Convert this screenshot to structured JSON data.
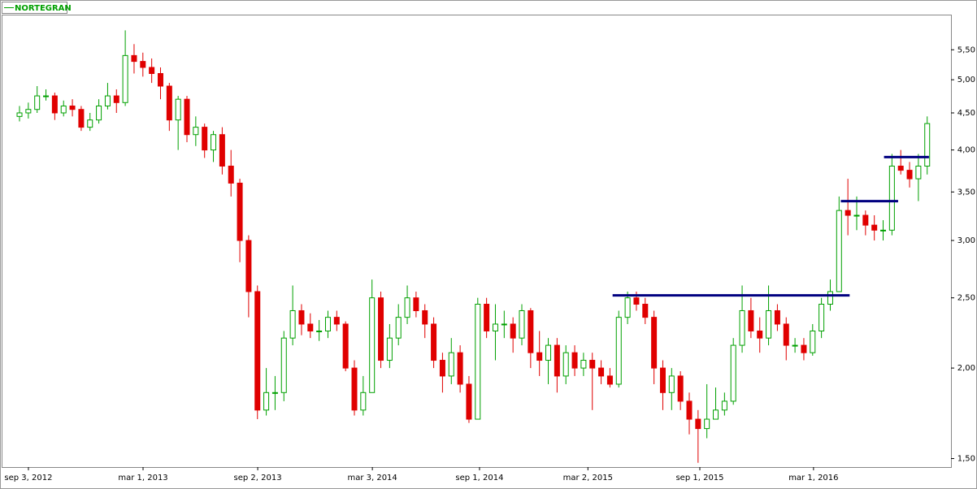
{
  "chart_data": {
    "type": "candlestick",
    "log_scale": true,
    "series": [
      {
        "name": "NORTEGRAN",
        "color": "#00a000",
        "up_color": "#00a000",
        "down_color": "#e00000",
        "open": [
          4.45,
          4.5,
          4.55,
          4.75,
          4.75,
          4.5,
          4.6,
          4.55,
          4.3,
          4.4,
          4.6,
          4.75,
          4.65,
          5.4,
          5.3,
          5.2,
          5.1,
          4.9,
          4.4,
          4.7,
          4.2,
          4.3,
          4.0,
          4.2,
          3.8,
          3.6,
          3.0,
          2.55,
          1.75,
          1.85,
          1.85,
          2.2,
          2.4,
          2.3,
          2.25,
          2.25,
          2.35,
          2.3,
          2.0,
          1.75,
          1.85,
          2.5,
          2.05,
          2.2,
          2.35,
          2.5,
          2.4,
          2.3,
          2.05,
          1.95,
          2.1,
          1.9,
          1.7,
          2.45,
          2.25,
          2.3,
          2.3,
          2.2,
          2.4,
          2.1,
          2.05,
          2.15,
          1.95,
          2.1,
          2.0,
          2.05,
          2.0,
          1.95,
          1.9,
          2.35,
          2.5,
          2.45,
          2.35,
          2.0,
          1.85,
          1.95,
          1.8,
          1.7,
          1.65,
          1.7,
          1.75,
          1.8,
          2.15,
          2.4,
          2.25,
          2.2,
          2.4,
          2.3,
          2.15,
          2.15,
          2.1,
          2.25,
          2.45,
          2.55,
          3.3,
          3.25,
          3.25,
          3.15,
          3.1,
          3.1,
          3.8,
          3.75,
          3.65,
          3.8
        ],
        "high": [
          4.6,
          4.65,
          4.9,
          4.85,
          4.8,
          4.68,
          4.7,
          4.6,
          4.5,
          4.7,
          4.95,
          4.85,
          5.85,
          5.6,
          5.45,
          5.35,
          5.2,
          4.95,
          4.75,
          4.75,
          4.45,
          4.35,
          4.25,
          4.3,
          4.0,
          3.65,
          3.05,
          2.6,
          2.0,
          1.95,
          2.25,
          2.6,
          2.45,
          2.38,
          2.33,
          2.4,
          2.4,
          2.32,
          2.05,
          1.95,
          2.65,
          2.55,
          2.3,
          2.45,
          2.6,
          2.55,
          2.45,
          2.35,
          2.1,
          2.2,
          2.15,
          1.95,
          2.5,
          2.5,
          2.45,
          2.4,
          2.35,
          2.45,
          2.42,
          2.25,
          2.2,
          2.2,
          2.15,
          2.15,
          2.1,
          2.1,
          2.05,
          2.0,
          2.4,
          2.55,
          2.55,
          2.5,
          2.4,
          2.05,
          2.0,
          1.98,
          1.85,
          1.75,
          1.9,
          1.88,
          1.85,
          2.2,
          2.6,
          2.5,
          2.35,
          2.6,
          2.45,
          2.35,
          2.2,
          2.2,
          2.3,
          2.5,
          2.65,
          3.45,
          3.65,
          3.45,
          3.3,
          3.25,
          3.2,
          3.95,
          4.0,
          3.85,
          3.95,
          4.45
        ],
        "low": [
          4.38,
          4.42,
          4.5,
          4.68,
          4.4,
          4.45,
          4.45,
          4.25,
          4.25,
          4.35,
          4.55,
          4.5,
          4.6,
          5.1,
          5.05,
          4.95,
          4.7,
          4.25,
          4.0,
          4.1,
          4.05,
          3.9,
          3.85,
          3.7,
          3.45,
          2.8,
          2.35,
          1.7,
          1.72,
          1.75,
          1.8,
          2.15,
          2.22,
          2.2,
          2.18,
          2.2,
          2.25,
          1.98,
          1.72,
          1.72,
          1.85,
          2.0,
          2.0,
          2.15,
          2.3,
          2.35,
          2.2,
          2.0,
          1.85,
          1.9,
          1.85,
          1.68,
          1.7,
          2.2,
          2.05,
          2.2,
          2.1,
          2.15,
          2.0,
          1.95,
          1.9,
          1.85,
          1.9,
          1.95,
          1.95,
          1.75,
          1.9,
          1.88,
          1.88,
          2.3,
          2.4,
          2.3,
          1.9,
          1.75,
          1.75,
          1.75,
          1.62,
          1.48,
          1.6,
          1.7,
          1.72,
          1.78,
          2.1,
          2.2,
          2.1,
          2.15,
          2.25,
          2.05,
          2.1,
          2.05,
          2.08,
          2.2,
          2.4,
          2.55,
          3.05,
          3.1,
          3.05,
          3.0,
          3.0,
          3.05,
          3.7,
          3.55,
          3.4,
          3.7
        ],
        "close": [
          4.5,
          4.55,
          4.75,
          4.75,
          4.5,
          4.6,
          4.55,
          4.3,
          4.4,
          4.6,
          4.75,
          4.65,
          5.4,
          5.3,
          5.2,
          5.1,
          4.9,
          4.4,
          4.7,
          4.2,
          4.3,
          4.0,
          4.2,
          3.8,
          3.6,
          3.0,
          2.55,
          1.75,
          1.85,
          1.85,
          2.2,
          2.4,
          2.3,
          2.25,
          2.25,
          2.35,
          2.3,
          2.0,
          1.75,
          1.85,
          2.5,
          2.05,
          2.2,
          2.35,
          2.5,
          2.4,
          2.3,
          2.05,
          1.95,
          2.1,
          1.9,
          1.7,
          2.45,
          2.25,
          2.3,
          2.3,
          2.2,
          2.4,
          2.1,
          2.05,
          2.15,
          1.95,
          2.1,
          2.0,
          2.05,
          2.0,
          1.95,
          1.9,
          2.35,
          2.5,
          2.45,
          2.35,
          2.0,
          1.85,
          1.95,
          1.8,
          1.7,
          1.65,
          1.7,
          1.75,
          1.8,
          2.15,
          2.4,
          2.25,
          2.2,
          2.4,
          2.3,
          2.15,
          2.15,
          2.1,
          2.25,
          2.45,
          2.55,
          3.3,
          3.25,
          3.25,
          3.15,
          3.1,
          3.1,
          3.8,
          3.75,
          3.65,
          3.8,
          4.35
        ]
      }
    ],
    "xlim": [
      -2.03,
      105.7
    ],
    "xticks": [
      {
        "value": 1.01,
        "label": "sep 3, 2012"
      },
      {
        "value": 14.02,
        "label": "mar 1, 2013"
      },
      {
        "value": 27.03,
        "label": "sep 2, 2013"
      },
      {
        "value": 40.04,
        "label": "mar 3, 2014"
      },
      {
        "value": 52.2,
        "label": "sep 1, 2014"
      },
      {
        "value": 64.5,
        "label": "mar 2, 2015"
      },
      {
        "value": 77.2,
        "label": "sep 1, 2015"
      },
      {
        "value": 90.1,
        "label": "mar 1, 2016"
      }
    ],
    "ylim": [
      1.46,
      6.15
    ],
    "yticks": [
      {
        "value": 1.5,
        "label": "1,50"
      },
      {
        "value": 2.0,
        "label": "2,00"
      },
      {
        "value": 2.5,
        "label": "2,50"
      },
      {
        "value": 3.0,
        "label": "3,00"
      },
      {
        "value": 3.5,
        "label": "3,50"
      },
      {
        "value": 4.0,
        "label": "4,00"
      },
      {
        "value": 4.5,
        "label": "4,50"
      },
      {
        "value": 5.0,
        "label": "5,00"
      },
      {
        "value": 5.5,
        "label": "5,50"
      }
    ],
    "lines": [
      {
        "x": [
          67.3,
          94.2
        ],
        "value": 2.52
      },
      {
        "x": [
          93.2,
          99.7
        ],
        "value": 3.4
      },
      {
        "x": [
          98.1,
          103.2
        ],
        "value": 3.91
      }
    ],
    "line_color": "#000080"
  }
}
